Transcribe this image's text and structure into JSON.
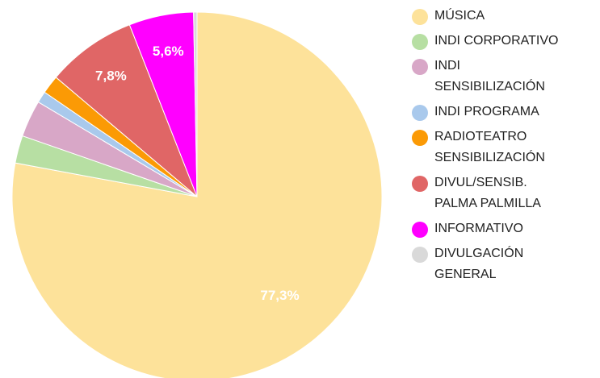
{
  "chart_data": {
    "type": "pie",
    "slices": [
      {
        "label": "MÚSICA",
        "lines": [
          "MÚSICA"
        ],
        "value": 77.3,
        "display": "77,3%",
        "color": "#fde29a"
      },
      {
        "label": "INDI CORPORATIVO",
        "lines": [
          "INDI CORPORATIVO"
        ],
        "value": 2.4,
        "display": "",
        "color": "#b7dfa3"
      },
      {
        "label": "INDI SENSIBILIZACIÓN",
        "lines": [
          "INDI",
          "SENSIBILIZACIÓN"
        ],
        "value": 3.2,
        "display": "",
        "color": "#d8a7c7"
      },
      {
        "label": "INDI PROGRAMA",
        "lines": [
          "INDI PROGRAMA"
        ],
        "value": 1.0,
        "display": "",
        "color": "#a9c9ec"
      },
      {
        "label": "RADIOTEATRO SENSIBILIZACIÓN",
        "lines": [
          "RADIOTEATRO",
          "SENSIBILIZACIÓN"
        ],
        "value": 1.6,
        "display": "",
        "color": "#fb9a05"
      },
      {
        "label": "DIVUL/SENSIB. PALMA PALMILLA",
        "lines": [
          "DIVUL/SENSIB.",
          "PALMA PALMILLA"
        ],
        "value": 7.8,
        "display": "7,8%",
        "color": "#e06666"
      },
      {
        "label": "INFORMATIVO",
        "lines": [
          "INFORMATIVO"
        ],
        "value": 5.6,
        "display": "5,6%",
        "color": "#ff00ff"
      },
      {
        "label": "DIVULGACIÓN GENERAL",
        "lines": [
          "DIVULGACIÓN",
          "GENERAL"
        ],
        "value": 0.3,
        "display": "",
        "color": "#d9d9d9"
      }
    ],
    "legend_position": "right"
  }
}
